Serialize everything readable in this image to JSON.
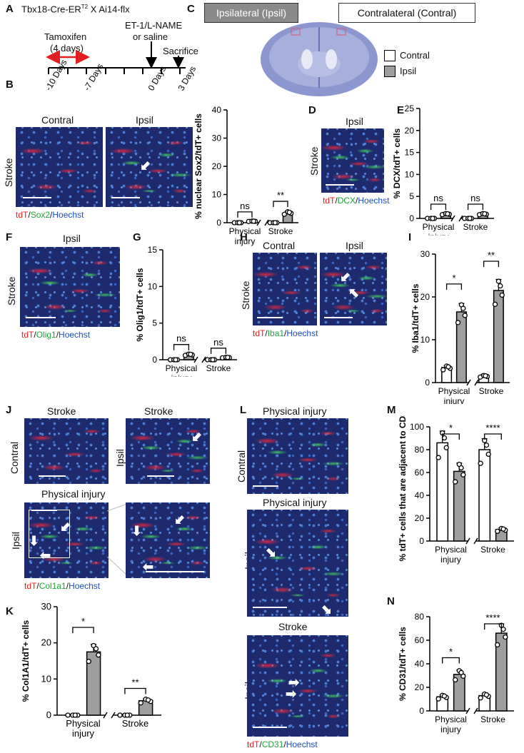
{
  "panels": {
    "A": {
      "label": "A",
      "title": "Tbx18-Cre-ER",
      "sup": "T2",
      "title_rest": " X Ai14-flx",
      "tamoxifen": "Tamoxifen",
      "tamoxifen_days": "(4 days)",
      "treatment1": "ET-1/L-NAME",
      "treatment2": "or saline",
      "sacrifice": "Sacrifice",
      "ticks": [
        "-10 Days",
        "-7 Days",
        "0 Days",
        "3 Days"
      ]
    },
    "B": {
      "label": "B",
      "contral": "Contral",
      "ipsil": "Ipsil",
      "side": "Stroke",
      "cap_r": "tdT",
      "cap_g": "Sox2",
      "cap_b": "Hoechst"
    },
    "C": {
      "label": "C",
      "ipsil_box": "Ipsilateral (Ipsil)",
      "contral_box": "Contralateral (Contral)",
      "legend_contral": "Contral",
      "legend_ipsil": "Ipsil"
    },
    "D": {
      "label": "D",
      "title": "Ipsil",
      "side": "Stroke",
      "cap_r": "tdT",
      "cap_g": "DCX",
      "cap_b": "Hoechst"
    },
    "E": {
      "label": "E"
    },
    "F": {
      "label": "F",
      "title": "Ipsil",
      "side": "Stroke",
      "cap_r": "tdT",
      "cap_g": "Olig1",
      "cap_b": "Hoechst"
    },
    "G": {
      "label": "G"
    },
    "H": {
      "label": "H",
      "contral": "Contral",
      "ipsil": "Ipsil",
      "side": "Stroke",
      "cap_r": "tdT",
      "cap_g": "Iba1",
      "cap_b": "Hoechst"
    },
    "I": {
      "label": "I"
    },
    "J": {
      "label": "J",
      "stroke1": "Stroke",
      "stroke2": "Stroke",
      "contral": "Contral",
      "ipsil1": "Ipsil",
      "phys": "Physical injury",
      "ipsil2": "Ipsil",
      "cap_r": "tdT",
      "cap_g": "Col1a1",
      "cap_b": "Hoechst"
    },
    "K": {
      "label": "K"
    },
    "L": {
      "label": "L",
      "phys1": "Physical injury",
      "contral": "Contral",
      "phys2": "Physical injury",
      "ipsil1": "Ipsil",
      "stroke": "Stroke",
      "ipsil2": "Ipsil",
      "cap_r": "tdT",
      "cap_g": "CD31",
      "cap_b": "Hoechst"
    },
    "M": {
      "label": "M"
    },
    "N": {
      "label": "N"
    }
  },
  "colors": {
    "contral": "#ffffff",
    "ipsil": "#9e9e9e",
    "red": "#e02020",
    "green": "#1fa33a",
    "blue": "#1b4fc4"
  },
  "chart_data": [
    {
      "id": "B",
      "type": "bar",
      "ylabel": "% nuclear Sox2/tdT+ cells",
      "ylim": [
        0,
        40
      ],
      "yticks": [
        0,
        10,
        20,
        30,
        40
      ],
      "groups": [
        "Physical injury",
        "Stroke"
      ],
      "series": [
        {
          "name": "Contral",
          "values": [
            0,
            0
          ]
        },
        {
          "name": "Ipsil",
          "values": [
            0.5,
            3.5
          ]
        }
      ],
      "sig": [
        "ns",
        "**"
      ]
    },
    {
      "id": "E",
      "type": "bar",
      "ylabel": "% DCX/tdT+ cells",
      "ylim": [
        0,
        25
      ],
      "yticks": [
        0,
        5,
        10,
        15,
        20,
        25
      ],
      "groups": [
        "Physical injury",
        "Stroke"
      ],
      "series": [
        {
          "name": "Contral",
          "values": [
            0,
            0
          ]
        },
        {
          "name": "Ipsil",
          "values": [
            1,
            1
          ]
        }
      ],
      "sig": [
        "ns",
        "ns"
      ]
    },
    {
      "id": "G",
      "type": "bar",
      "ylabel": "% Olig1/tdT+ cells",
      "ylim": [
        0,
        15
      ],
      "yticks": [
        0,
        5,
        10,
        15
      ],
      "groups": [
        "Physical injury",
        "Stroke"
      ],
      "series": [
        {
          "name": "Contral",
          "values": [
            0,
            0
          ]
        },
        {
          "name": "Ipsil",
          "values": [
            0.7,
            0.3
          ]
        }
      ],
      "sig": [
        "ns",
        "ns"
      ]
    },
    {
      "id": "I",
      "type": "bar",
      "ylabel": "% Iba1/tdT+ cells",
      "ylim": [
        0,
        30
      ],
      "yticks": [
        0,
        10,
        20,
        30
      ],
      "groups": [
        "Physical injury",
        "Stroke"
      ],
      "series": [
        {
          "name": "Contral",
          "values": [
            3.5,
            1.5
          ]
        },
        {
          "name": "Ipsil",
          "values": [
            16.5,
            21.5
          ]
        }
      ],
      "sig": [
        "*",
        "**"
      ]
    },
    {
      "id": "K",
      "type": "bar",
      "ylabel": "% Col1A1/tdT+ cells",
      "ylim": [
        0,
        30
      ],
      "yticks": [
        0,
        10,
        20,
        30
      ],
      "groups": [
        "Physical injury",
        "Stroke"
      ],
      "series": [
        {
          "name": "Contral",
          "values": [
            0,
            0
          ]
        },
        {
          "name": "Ipsil",
          "values": [
            17.5,
            4
          ]
        }
      ],
      "sig": [
        "*",
        "**"
      ]
    },
    {
      "id": "M",
      "type": "bar",
      "ylabel": "% tdT+ cells that are adjacent to CD31",
      "ylim": [
        0,
        100
      ],
      "yticks": [
        0,
        20,
        40,
        60,
        80,
        100
      ],
      "groups": [
        "Physical injury",
        "Stroke"
      ],
      "series": [
        {
          "name": "Contral",
          "values": [
            86,
            80
          ]
        },
        {
          "name": "Ipsil",
          "values": [
            61,
            10
          ]
        }
      ],
      "sig": [
        "*",
        "****"
      ]
    },
    {
      "id": "N",
      "type": "bar",
      "ylabel": "% CD31/tdT+ cells",
      "ylim": [
        0,
        80
      ],
      "yticks": [
        0,
        20,
        40,
        60,
        80
      ],
      "groups": [
        "Physical injury",
        "Stroke"
      ],
      "series": [
        {
          "name": "Contral",
          "values": [
            12,
            13
          ]
        },
        {
          "name": "Ipsil",
          "values": [
            31,
            66
          ]
        }
      ],
      "sig": [
        "*",
        "****"
      ]
    }
  ]
}
